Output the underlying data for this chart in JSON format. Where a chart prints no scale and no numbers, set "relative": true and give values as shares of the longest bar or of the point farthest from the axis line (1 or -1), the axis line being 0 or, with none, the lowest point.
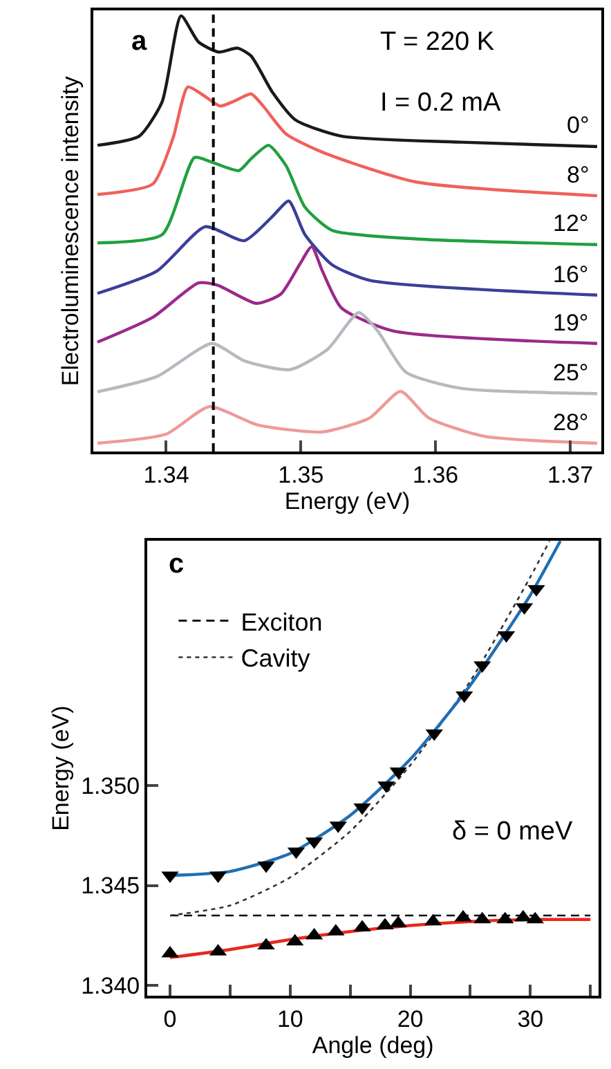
{
  "chart_data": [
    {
      "type": "line",
      "xlabel": "Energy (eV)",
      "ylabel": "Electroluminescence intensity",
      "relative": true,
      "tick_labels": "x",
      "legend": false,
      "marker": "none",
      "line_style": "solid",
      "annotations": [
        "a",
        "T = 220 K",
        "I = 0.2 mA"
      ],
      "xlim": [
        1.3346,
        1.3723
      ],
      "xticks": [
        1.34,
        1.35,
        1.36,
        1.37
      ],
      "ref_lines": [
        {
          "axis": "x",
          "value": 1.3435,
          "line_style": "dashed",
          "color": "#000000"
        }
      ],
      "series": [
        {
          "name": "0°",
          "color": "#1a1a1a",
          "x": [
            1.3349,
            1.338,
            1.3397,
            1.3411,
            1.3424,
            1.3439,
            1.3453,
            1.3463,
            1.3479,
            1.3496,
            1.353,
            1.3619,
            1.372
          ],
          "values": [
            0.703,
            0.724,
            0.803,
            1.0,
            0.94,
            0.917,
            0.926,
            0.908,
            0.824,
            0.761,
            0.724,
            0.71,
            0.7
          ]
        },
        {
          "name": "8°",
          "color": "#f0605a",
          "x": [
            1.3349,
            1.339,
            1.3405,
            1.3416,
            1.3427,
            1.344,
            1.3451,
            1.3463,
            1.3472,
            1.3489,
            1.3516,
            1.3585,
            1.372
          ],
          "values": [
            0.59,
            0.614,
            0.719,
            0.837,
            0.819,
            0.793,
            0.805,
            0.821,
            0.793,
            0.729,
            0.687,
            0.619,
            0.587
          ]
        },
        {
          "name": "12°",
          "color": "#1fa040",
          "x": [
            1.3349,
            1.3397,
            1.3421,
            1.3434,
            1.3454,
            1.3463,
            1.3476,
            1.3489,
            1.3503,
            1.3523,
            1.3585,
            1.372
          ],
          "values": [
            0.479,
            0.498,
            0.675,
            0.664,
            0.645,
            0.672,
            0.703,
            0.656,
            0.561,
            0.508,
            0.488,
            0.475
          ]
        },
        {
          "name": "16°",
          "color": "#3a3f9a",
          "x": [
            1.3349,
            1.3393,
            1.3429,
            1.3458,
            1.3479,
            1.3491,
            1.3503,
            1.3523,
            1.3551,
            1.372
          ],
          "values": [
            0.363,
            0.414,
            0.516,
            0.484,
            0.54,
            0.575,
            0.498,
            0.429,
            0.393,
            0.359
          ]
        },
        {
          "name": "19°",
          "color": "#9a2a8a",
          "x": [
            1.3349,
            1.339,
            1.3424,
            1.3438,
            1.3467,
            1.3485,
            1.3499,
            1.3508,
            1.3516,
            1.353,
            1.3568,
            1.372
          ],
          "values": [
            0.251,
            0.308,
            0.387,
            0.382,
            0.34,
            0.361,
            0.429,
            0.47,
            0.414,
            0.33,
            0.277,
            0.248
          ]
        },
        {
          "name": "25°",
          "color": "#b8b8c0",
          "x": [
            1.3349,
            1.3393,
            1.3434,
            1.3458,
            1.3492,
            1.352,
            1.3543,
            1.3557,
            1.3578,
            1.3619,
            1.372
          ],
          "values": [
            0.137,
            0.172,
            0.248,
            0.208,
            0.188,
            0.235,
            0.319,
            0.277,
            0.182,
            0.145,
            0.133
          ]
        },
        {
          "name": "28°",
          "color": "#ee9a9a",
          "x": [
            1.3349,
            1.34,
            1.3432,
            1.3468,
            1.3516,
            1.3551,
            1.3574,
            1.3595,
            1.3636,
            1.372
          ],
          "values": [
            0.019,
            0.04,
            0.103,
            0.061,
            0.045,
            0.077,
            0.138,
            0.077,
            0.035,
            0.019
          ]
        }
      ]
    },
    {
      "type": "line",
      "xlabel": "Angle (deg)",
      "ylabel": "Energy (eV)",
      "legend": "top left",
      "annotations": [
        "c",
        "δ = 0 meV"
      ],
      "xlim": [
        -1.9,
        35.7
      ],
      "xticks": [
        0,
        {
          "value": 5,
          "label": null
        },
        10,
        {
          "value": 15,
          "label": null
        },
        20,
        {
          "value": 25,
          "label": null
        },
        30,
        {
          "value": 35,
          "label": null
        }
      ],
      "ylim": [
        1.3395,
        1.3622
      ],
      "yticks": [
        {
          "value": 1.34,
          "label": "1.340"
        },
        {
          "value": 1.345,
          "label": "1.345"
        },
        {
          "value": 1.35,
          "label": "1.350"
        }
      ],
      "series": [
        {
          "type": "line",
          "name": "Exciton",
          "color": "#000000",
          "line_style": "dashed",
          "marker": "none",
          "x": [
            0,
            35
          ],
          "values": [
            1.3435,
            1.3435
          ]
        },
        {
          "type": "line",
          "name": "Cavity",
          "color": "#333333",
          "line_style": "dotted",
          "marker": "none",
          "x": [
            0,
            5,
            10,
            15,
            20,
            25,
            30,
            31.6
          ],
          "values": [
            1.3435,
            1.344,
            1.3454,
            1.3477,
            1.351,
            1.3552,
            1.3604,
            1.3622
          ]
        },
        {
          "type": "line",
          "color": "#1f6fb4",
          "line_style": "solid",
          "marker": "none",
          "x": [
            0,
            5,
            10,
            15,
            20,
            25,
            30,
            32.5
          ],
          "values": [
            1.3455,
            1.3457,
            1.3466,
            1.3485,
            1.3513,
            1.355,
            1.3595,
            1.3622
          ]
        },
        {
          "type": "line",
          "color": "#e8281e",
          "line_style": "solid",
          "marker": "none",
          "x": [
            0,
            5,
            10,
            15,
            20,
            25,
            30,
            35
          ],
          "values": [
            1.3414,
            1.3418,
            1.3423,
            1.3427,
            1.343,
            1.3432,
            1.3433,
            1.3433
          ]
        },
        {
          "type": "scatter",
          "color": "#000000",
          "marker": "triangle-down",
          "x": [
            0,
            4,
            8,
            10.5,
            12,
            14,
            16,
            18,
            19,
            22,
            24.5,
            26,
            28,
            29.5,
            30.5
          ],
          "values": [
            1.3455,
            1.3455,
            1.346,
            1.3467,
            1.3472,
            1.348,
            1.3489,
            1.35,
            1.3507,
            1.3526,
            1.3545,
            1.356,
            1.3575,
            1.3589,
            1.3598
          ]
        },
        {
          "type": "scatter",
          "color": "#000000",
          "marker": "triangle",
          "x": [
            0,
            4,
            8,
            10.4,
            12,
            13.8,
            16,
            17.9,
            19,
            21.9,
            24.4,
            26,
            27.9,
            29.4,
            30.4
          ],
          "values": [
            1.3416,
            1.3417,
            1.342,
            1.3422,
            1.3425,
            1.3427,
            1.3429,
            1.343,
            1.3431,
            1.3432,
            1.3434,
            1.3433,
            1.3433,
            1.3434,
            1.3433
          ]
        }
      ]
    }
  ]
}
